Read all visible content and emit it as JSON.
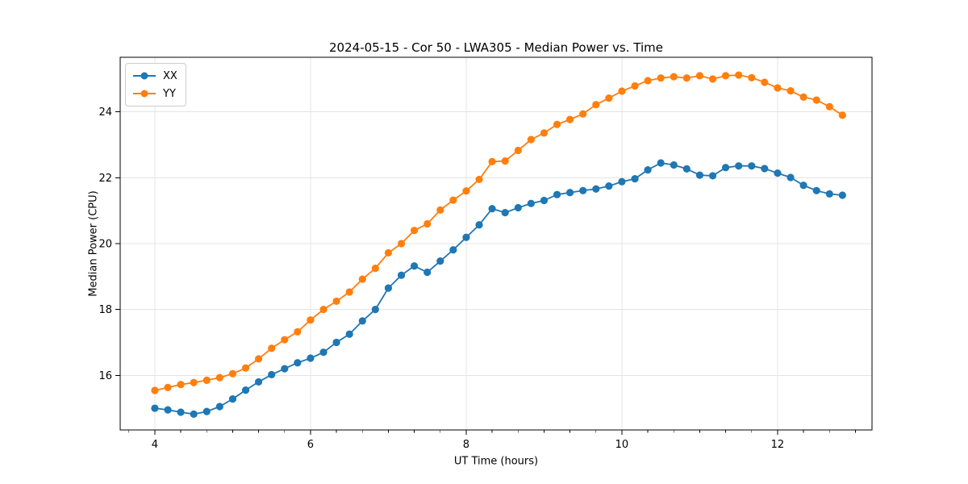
{
  "chart_data": {
    "type": "line",
    "title": "2024-05-15 - Cor 50 - LWA305 - Median Power vs. Time",
    "xlabel": "UT Time (hours)",
    "ylabel": "Median Power (CPU)",
    "xlim": [
      3.555,
      13.213
    ],
    "ylim": [
      14.34,
      25.66
    ],
    "xticks": [
      4,
      6,
      8,
      10,
      12
    ],
    "yticks": [
      16,
      18,
      20,
      22,
      24
    ],
    "xtick_labels": [
      "4",
      "6",
      "8",
      "10",
      "12"
    ],
    "ytick_labels": [
      "16",
      "18",
      "20",
      "22",
      "24"
    ],
    "minor_xtick_step": 0.33333,
    "grid": true,
    "legend_position": "upper-left",
    "x": [
      4.0,
      4.167,
      4.333,
      4.5,
      4.667,
      4.833,
      5.0,
      5.167,
      5.333,
      5.5,
      5.667,
      5.833,
      6.0,
      6.167,
      6.333,
      6.5,
      6.667,
      6.833,
      7.0,
      7.167,
      7.333,
      7.5,
      7.667,
      7.833,
      8.0,
      8.167,
      8.333,
      8.5,
      8.667,
      8.833,
      9.0,
      9.167,
      9.333,
      9.5,
      9.667,
      9.833,
      10.0,
      10.167,
      10.333,
      10.5,
      10.667,
      10.833,
      11.0,
      11.167,
      11.333,
      11.5,
      11.667,
      11.833,
      12.0,
      12.167,
      12.333,
      12.5,
      12.667,
      12.833
    ],
    "series": [
      {
        "name": "XX",
        "color": "#1f77b4",
        "values": [
          15.0,
          14.95,
          14.88,
          14.82,
          14.9,
          15.05,
          15.28,
          15.55,
          15.8,
          16.02,
          16.2,
          16.38,
          16.52,
          16.7,
          17.0,
          17.25,
          17.65,
          18.0,
          18.65,
          19.04,
          19.32,
          19.13,
          19.47,
          19.81,
          20.19,
          20.57,
          21.06,
          20.94,
          21.09,
          21.22,
          21.31,
          21.49,
          21.55,
          21.61,
          21.66,
          21.75,
          21.88,
          21.97,
          22.24,
          22.45,
          22.39,
          22.27,
          22.08,
          22.06,
          22.31,
          22.36,
          22.36,
          22.28,
          22.14,
          22.01,
          21.77,
          21.61,
          21.51,
          21.47
        ]
      },
      {
        "name": "YY",
        "color": "#ff7f0e",
        "values": [
          15.54,
          15.63,
          15.72,
          15.78,
          15.85,
          15.93,
          16.05,
          16.22,
          16.5,
          16.82,
          17.08,
          17.32,
          17.68,
          18.0,
          18.25,
          18.53,
          18.92,
          19.25,
          19.72,
          20.0,
          20.4,
          20.6,
          21.02,
          21.32,
          21.6,
          21.95,
          22.49,
          22.51,
          22.83,
          23.16,
          23.36,
          23.62,
          23.77,
          23.94,
          24.22,
          24.42,
          24.63,
          24.79,
          24.95,
          25.03,
          25.07,
          25.03,
          25.1,
          25.0,
          25.1,
          25.12,
          25.04,
          24.9,
          24.73,
          24.64,
          24.45,
          24.36,
          24.16,
          23.9
        ]
      }
    ]
  }
}
